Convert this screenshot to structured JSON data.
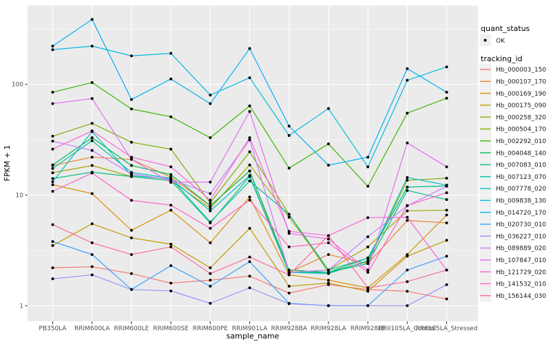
{
  "chart_data": {
    "type": "line",
    "title": "",
    "xlabel": "sample_name",
    "ylabel": "FPKM + 1",
    "y_scale": "log10",
    "y_tick_labels": [
      "1",
      "10",
      "100"
    ],
    "y_ticks": [
      1,
      10,
      100
    ],
    "y_minor_ticks": [
      3.162,
      31.62,
      316.2
    ],
    "ylim": [
      0.9,
      450
    ],
    "grid": true,
    "legend_position": "right",
    "point_marker": "black-dot",
    "categories": [
      "PB350LA",
      "RRIM600LA",
      "RRIM600LE",
      "RRIM600SE",
      "RRIM600PE",
      "RRIM901LA",
      "RRIM928BA",
      "RRIM928LA",
      "RRIM928LE",
      "RRII105LA_Control",
      "RRII105LA_Stressed"
    ],
    "series": [
      {
        "name": "Hb_000003_150",
        "color": "#F8766D",
        "values": [
          2.2,
          2.25,
          1.95,
          1.6,
          1.7,
          1.85,
          1.3,
          1.55,
          1.4,
          1.35,
          1.15
        ]
      },
      {
        "name": "Hb_000107_170",
        "color": "#EA8331",
        "values": [
          18.5,
          22,
          21,
          14.5,
          8.0,
          16.5,
          2.0,
          2.9,
          2.4,
          5.9,
          5.6
        ]
      },
      {
        "name": "Hb_000169_190",
        "color": "#D89000",
        "values": [
          12.4,
          10.3,
          4.8,
          7.3,
          3.7,
          9.6,
          1.9,
          1.7,
          1.45,
          2.9,
          6.6
        ]
      },
      {
        "name": "Hb_000175_090",
        "color": "#C09B00",
        "values": [
          3.5,
          5.5,
          4.1,
          3.6,
          2.2,
          5.0,
          1.5,
          1.6,
          1.35,
          2.8,
          3.9
        ]
      },
      {
        "name": "Hb_000258_320",
        "color": "#A3A500",
        "values": [
          15.9,
          18.5,
          14.7,
          13.5,
          7.6,
          18.7,
          6.3,
          2.1,
          3.4,
          7.2,
          7.3
        ]
      },
      {
        "name": "Hb_000504_170",
        "color": "#7CAE00",
        "values": [
          34,
          44.5,
          30,
          26,
          8.5,
          24.6,
          6.7,
          2.0,
          2.5,
          13.6,
          14.2
        ]
      },
      {
        "name": "Hb_002292_010",
        "color": "#39B600",
        "values": [
          85,
          104,
          60,
          51,
          33,
          64,
          17.5,
          29,
          12,
          55,
          75
        ]
      },
      {
        "name": "Hb_004048_140",
        "color": "#00BB4E",
        "values": [
          18.7,
          33,
          18.5,
          15.3,
          8.0,
          16.5,
          2.1,
          2.0,
          2.7,
          11.8,
          12.1
        ]
      },
      {
        "name": "Hb_007083_010",
        "color": "#00BF7D",
        "values": [
          14.1,
          16.1,
          14.7,
          13.5,
          5.6,
          14.7,
          2.0,
          2.0,
          2.4,
          11.0,
          9.1
        ]
      },
      {
        "name": "Hb_007123_070",
        "color": "#00C1A3",
        "values": [
          17.4,
          31,
          16,
          14.2,
          5.7,
          13.4,
          6.7,
          2.1,
          2.7,
          11.8,
          12.1
        ]
      },
      {
        "name": "Hb_007778_020",
        "color": "#00BFC4",
        "values": [
          13.2,
          37.5,
          15,
          14,
          7.2,
          15,
          2.0,
          1.95,
          2.55,
          14.4,
          12.3
        ]
      },
      {
        "name": "Hb_009838_130",
        "color": "#00BAE0",
        "values": [
          206,
          222,
          181,
          191,
          80,
          115,
          34.5,
          60.5,
          18,
          109,
          144
        ]
      },
      {
        "name": "Hb_014720_170",
        "color": "#00B0F6",
        "values": [
          222,
          387,
          73,
          112,
          67,
          211,
          42,
          18.6,
          22,
          139,
          85
        ]
      },
      {
        "name": "Hb_020730_010",
        "color": "#35A2FF",
        "values": [
          3.8,
          2.9,
          1.4,
          2.3,
          1.5,
          2.5,
          1.05,
          1.0,
          1.0,
          2.1,
          2.8
        ]
      },
      {
        "name": "Hb_036227_010",
        "color": "#9590FF",
        "values": [
          1.75,
          1.9,
          1.4,
          1.36,
          1.05,
          1.45,
          1.04,
          1.0,
          1.0,
          1.0,
          1.55
        ]
      },
      {
        "name": "Hb_089889_020",
        "color": "#C77CFF",
        "values": [
          30.7,
          25.3,
          15.5,
          13.8,
          10.3,
          31.5,
          2.0,
          2.1,
          4.2,
          8.0,
          12.0
        ]
      },
      {
        "name": "Hb_107847_010",
        "color": "#E76BF3",
        "values": [
          67,
          74.5,
          21,
          13,
          13.1,
          57,
          4.5,
          4.0,
          2.1,
          29.6,
          18
        ]
      },
      {
        "name": "Hb_121729_020",
        "color": "#FA62DB",
        "values": [
          26,
          38,
          22,
          18,
          9.0,
          33,
          4.7,
          4.3,
          6.25,
          6.3,
          2.1
        ]
      },
      {
        "name": "Hb_141532_010",
        "color": "#FF61C9",
        "values": [
          10.8,
          15.8,
          8.95,
          8.1,
          5.0,
          9.0,
          3.4,
          3.7,
          2.0,
          8.05,
          10.5
        ]
      },
      {
        "name": "Hb_156144_030",
        "color": "#FF6A98",
        "values": [
          5.4,
          3.7,
          2.9,
          3.4,
          1.95,
          2.75,
          1.9,
          4.3,
          1.45,
          1.65,
          2.1
        ]
      }
    ]
  },
  "legend": {
    "quant_status_title": "quant_status",
    "quant_status_items": [
      {
        "label": "OK",
        "marker": "point",
        "color": "#000000"
      }
    ],
    "tracking_id_title": "tracking_id"
  },
  "colors": {
    "background": "#FFFFFF",
    "panel_bg": "#EBEBEB",
    "grid": "#FFFFFF",
    "axis_text": "#4D4D4D",
    "axis_title": "#000000",
    "legend_key_bg": "#F0F0F0",
    "point": "#000000"
  }
}
